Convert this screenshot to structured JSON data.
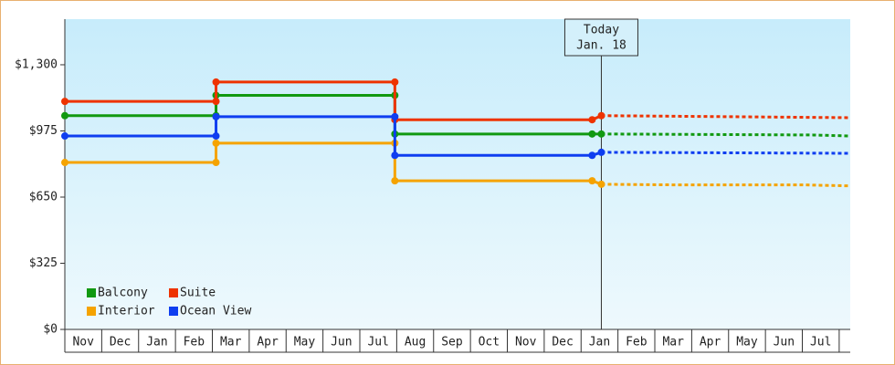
{
  "chart_data": {
    "type": "step-line",
    "categories": [
      "Nov",
      "Dec",
      "Jan",
      "Feb",
      "Mar",
      "Apr",
      "May",
      "Jun",
      "Jul",
      "Aug",
      "Sep",
      "Oct",
      "Nov",
      "Dec",
      "Jan",
      "Feb",
      "Mar",
      "Apr",
      "May",
      "Jun",
      "Jul"
    ],
    "xlim": [
      0,
      21.3
    ],
    "ylim": [
      0,
      1524
    ],
    "yticks": [
      {
        "value": 0,
        "label": "$0"
      },
      {
        "value": 325,
        "label": "$325"
      },
      {
        "value": 650,
        "label": "$650"
      },
      {
        "value": 975,
        "label": "$975"
      },
      {
        "value": 1300,
        "label": "$1,300"
      }
    ],
    "legend": "lower left",
    "annotation": {
      "x": 14.55,
      "lines": [
        "Today",
        "Jan. 18"
      ]
    },
    "series": [
      {
        "name": "Balcony",
        "color": "#119911",
        "x": [
          0,
          4.1,
          4.1,
          8.95,
          8.95,
          14.3,
          14.55
        ],
        "values": [
          1050,
          1050,
          1150,
          1150,
          960,
          960,
          960
        ],
        "forecast_x": [
          14.55,
          18.0,
          20.3,
          21.3
        ],
        "forecast_values": [
          960,
          957,
          955,
          950
        ]
      },
      {
        "name": "Suite",
        "color": "#ee3300",
        "x": [
          0,
          4.1,
          4.1,
          8.95,
          8.95,
          14.3,
          14.55
        ],
        "values": [
          1120,
          1120,
          1215,
          1215,
          1030,
          1030,
          1050
        ],
        "forecast_x": [
          14.55,
          18.0,
          21.3
        ],
        "forecast_values": [
          1050,
          1045,
          1040
        ]
      },
      {
        "name": "Interior",
        "color": "#f5a300",
        "x": [
          0,
          4.1,
          4.1,
          8.95,
          8.95,
          14.3,
          14.55
        ],
        "values": [
          820,
          820,
          915,
          915,
          730,
          730,
          713
        ],
        "forecast_x": [
          14.55,
          16.5,
          20.0,
          21.3
        ],
        "forecast_values": [
          713,
          710,
          710,
          705
        ]
      },
      {
        "name": "Ocean View",
        "color": "#0f3ef0",
        "x": [
          0,
          4.1,
          4.1,
          8.95,
          8.95,
          14.3,
          14.55
        ],
        "values": [
          950,
          950,
          1045,
          1045,
          855,
          855,
          870
        ],
        "forecast_x": [
          14.55,
          21.3
        ],
        "forecast_values": [
          870,
          865
        ]
      }
    ]
  }
}
